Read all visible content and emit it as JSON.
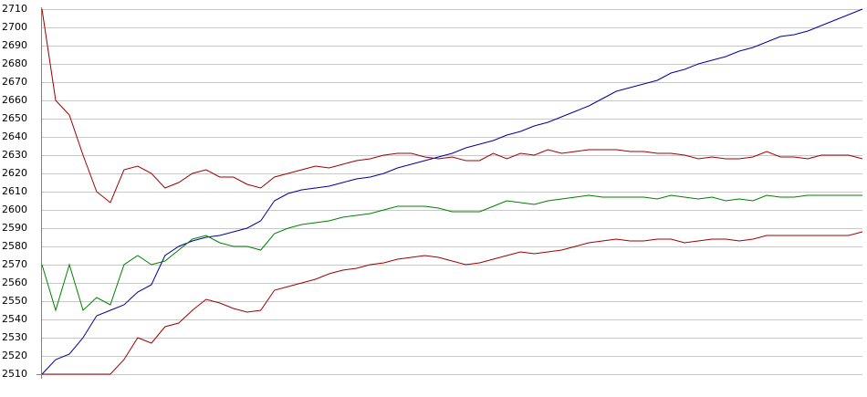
{
  "chart_data": {
    "type": "line",
    "categories": [
      null,
      null,
      null,
      null,
      null,
      null,
      null,
      null,
      null,
      null,
      null,
      null,
      null,
      null,
      null,
      null,
      null,
      null,
      null,
      null,
      null,
      null,
      null,
      null,
      null,
      null,
      null,
      null,
      null,
      null,
      null,
      null,
      null,
      null,
      null,
      null,
      null,
      null,
      null,
      null,
      null,
      null,
      null,
      null,
      null,
      null,
      null,
      null,
      null,
      null,
      null,
      null,
      null,
      null,
      null,
      null,
      null,
      null,
      null,
      null,
      null
    ],
    "ylim": [
      2510,
      2710
    ],
    "yticks": [
      2510,
      2520,
      2530,
      2540,
      2550,
      2560,
      2570,
      2580,
      2590,
      2600,
      2610,
      2620,
      2630,
      2640,
      2650,
      2660,
      2670,
      2680,
      2690,
      2700,
      2710
    ],
    "grid": true,
    "series": [
      {
        "color": "#0000a0",
        "values": [
          2510,
          2518,
          2521,
          2530,
          2542,
          2545,
          2548,
          2555,
          2559,
          2575,
          2580,
          2583,
          2585,
          2586,
          2588,
          2590,
          2594,
          2605,
          2609,
          2611,
          2612,
          2613,
          2615,
          2617,
          2618,
          2620,
          2623,
          2625,
          2627,
          2629,
          2631,
          2634,
          2636,
          2638,
          2641,
          2643,
          2646,
          2648,
          2651,
          2654,
          2657,
          2661,
          2665,
          2667,
          2669,
          2671,
          2675,
          2677,
          2680,
          2682,
          2684,
          2687,
          2689,
          2692,
          2695,
          2696,
          2698,
          2701,
          2704,
          2707,
          2710
        ]
      },
      {
        "color": "#a00000",
        "values": [
          2710,
          2660,
          2652,
          2630,
          2610,
          2604,
          2622,
          2624,
          2620,
          2612,
          2615,
          2620,
          2622,
          2618,
          2618,
          2614,
          2612,
          2618,
          2620,
          2622,
          2624,
          2623,
          2625,
          2627,
          2628,
          2630,
          2631,
          2631,
          2629,
          2628,
          2629,
          2627,
          2627,
          2631,
          2628,
          2631,
          2630,
          2633,
          2631,
          2632,
          2633,
          2633,
          2633,
          2632,
          2632,
          2631,
          2631,
          2630,
          2628,
          2629,
          2628,
          2628,
          2629,
          2632,
          2629,
          2629,
          2628,
          2630,
          2630,
          2630,
          2628
        ]
      },
      {
        "color": "#008000",
        "values": [
          2570,
          2545,
          2570,
          2545,
          2552,
          2548,
          2570,
          2575,
          2570,
          2572,
          2578,
          2584,
          2586,
          2582,
          2580,
          2580,
          2578,
          2587,
          2590,
          2592,
          2593,
          2594,
          2596,
          2597,
          2598,
          2600,
          2602,
          2602,
          2602,
          2601,
          2599,
          2599,
          2599,
          2602,
          2605,
          2604,
          2603,
          2605,
          2606,
          2607,
          2608,
          2607,
          2607,
          2607,
          2607,
          2606,
          2608,
          2607,
          2606,
          2607,
          2605,
          2606,
          2605,
          2608,
          2607,
          2607,
          2608,
          2608,
          2608,
          2608,
          2608
        ]
      },
      {
        "color": "#a00000",
        "values": [
          2510,
          2510,
          2510,
          2510,
          2510,
          2510,
          2518,
          2530,
          2527,
          2536,
          2538,
          2545,
          2551,
          2549,
          2546,
          2544,
          2545,
          2556,
          2558,
          2560,
          2562,
          2565,
          2567,
          2568,
          2570,
          2571,
          2573,
          2574,
          2575,
          2574,
          2572,
          2570,
          2571,
          2573,
          2575,
          2577,
          2576,
          2577,
          2578,
          2580,
          2582,
          2583,
          2584,
          2583,
          2583,
          2584,
          2584,
          2582,
          2583,
          2584,
          2584,
          2583,
          2584,
          2586,
          2586,
          2586,
          2586,
          2586,
          2586,
          2586,
          2588
        ]
      }
    ]
  }
}
